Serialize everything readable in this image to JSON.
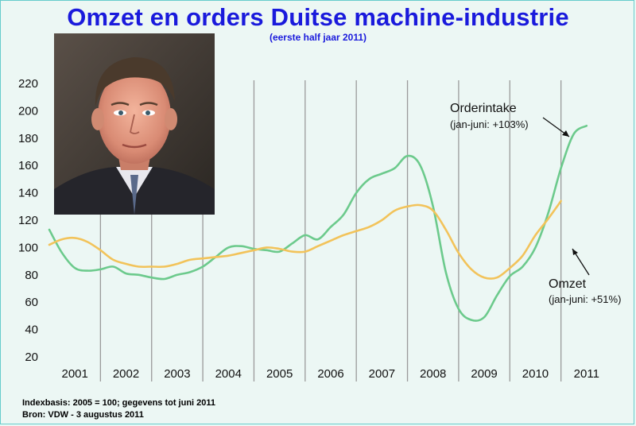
{
  "title": "Omzet en orders Duitse machine-industrie",
  "subtitle": "(eerste half jaar 2011)",
  "footer": {
    "line1": "Indexbasis: 2005 = 100; gegevens tot juni 2011",
    "line2": "Bron: VDW - 3 augustus 2011"
  },
  "annotations": {
    "orders_name": "Orderintake",
    "orders_note": "(jan-juni: +103%)",
    "omzet_name": "Omzet",
    "omzet_note": "(jan-juni: +51%)"
  },
  "colors": {
    "orders": "#6cca8c",
    "omzet": "#f2c35a",
    "grid": "#9a9a9a"
  },
  "photo_icon": "portrait-photo",
  "chart_data": {
    "type": "line",
    "title": "Omzet en orders Duitse machine-industrie",
    "subtitle": "(eerste half jaar 2011)",
    "ylim": [
      20,
      220
    ],
    "xlim": [
      2000.5,
      2011.5
    ],
    "yticks": [
      20,
      40,
      60,
      80,
      100,
      120,
      140,
      160,
      180,
      200,
      220
    ],
    "x_tick_labels": [
      {
        "x": 2001,
        "label": "2001"
      },
      {
        "x": 2002,
        "label": "2002"
      },
      {
        "x": 2003,
        "label": "2003"
      },
      {
        "x": 2004,
        "label": "2004"
      },
      {
        "x": 2005,
        "label": "2005"
      },
      {
        "x": 2006,
        "label": "2006"
      },
      {
        "x": 2007,
        "label": "2007"
      },
      {
        "x": 2008,
        "label": "2008"
      },
      {
        "x": 2009,
        "label": "2009"
      },
      {
        "x": 2010,
        "label": "2010"
      },
      {
        "x": 2011,
        "label": "2011"
      }
    ],
    "grid_x": [
      2001.5,
      2002.5,
      2003.5,
      2004.5,
      2005.5,
      2006.5,
      2007.5,
      2008.5,
      2009.5,
      2010.5
    ],
    "series": [
      {
        "name": "Orderintake",
        "points": [
          [
            2000.5,
            113
          ],
          [
            2000.75,
            96
          ],
          [
            2001.0,
            85
          ],
          [
            2001.25,
            83
          ],
          [
            2001.5,
            84
          ],
          [
            2001.75,
            86
          ],
          [
            2002.0,
            81
          ],
          [
            2002.25,
            80
          ],
          [
            2002.5,
            78
          ],
          [
            2002.75,
            77
          ],
          [
            2003.0,
            80
          ],
          [
            2003.25,
            82
          ],
          [
            2003.5,
            86
          ],
          [
            2003.75,
            93
          ],
          [
            2004.0,
            100
          ],
          [
            2004.25,
            101
          ],
          [
            2004.5,
            99
          ],
          [
            2004.75,
            98
          ],
          [
            2005.0,
            97
          ],
          [
            2005.25,
            103
          ],
          [
            2005.5,
            109
          ],
          [
            2005.75,
            106
          ],
          [
            2006.0,
            115
          ],
          [
            2006.25,
            124
          ],
          [
            2006.5,
            140
          ],
          [
            2006.75,
            150
          ],
          [
            2007.0,
            154
          ],
          [
            2007.25,
            158
          ],
          [
            2007.5,
            167
          ],
          [
            2007.75,
            160
          ],
          [
            2008.0,
            130
          ],
          [
            2008.25,
            82
          ],
          [
            2008.5,
            55
          ],
          [
            2008.75,
            47
          ],
          [
            2009.0,
            49
          ],
          [
            2009.25,
            65
          ],
          [
            2009.5,
            79
          ],
          [
            2009.75,
            86
          ],
          [
            2010.0,
            100
          ],
          [
            2010.25,
            125
          ],
          [
            2010.5,
            158
          ],
          [
            2010.75,
            183
          ],
          [
            2011.0,
            189
          ]
        ]
      },
      {
        "name": "Omzet",
        "points": [
          [
            2000.5,
            102
          ],
          [
            2000.75,
            106
          ],
          [
            2001.0,
            107
          ],
          [
            2001.25,
            104
          ],
          [
            2001.5,
            98
          ],
          [
            2001.75,
            91
          ],
          [
            2002.0,
            88
          ],
          [
            2002.25,
            86
          ],
          [
            2002.5,
            86
          ],
          [
            2002.75,
            86
          ],
          [
            2003.0,
            88
          ],
          [
            2003.25,
            91
          ],
          [
            2003.5,
            92
          ],
          [
            2003.75,
            93
          ],
          [
            2004.0,
            94
          ],
          [
            2004.25,
            96
          ],
          [
            2004.5,
            98
          ],
          [
            2004.75,
            100
          ],
          [
            2005.0,
            99
          ],
          [
            2005.25,
            97
          ],
          [
            2005.5,
            97
          ],
          [
            2005.75,
            101
          ],
          [
            2006.0,
            105
          ],
          [
            2006.25,
            109
          ],
          [
            2006.5,
            112
          ],
          [
            2006.75,
            115
          ],
          [
            2007.0,
            120
          ],
          [
            2007.25,
            127
          ],
          [
            2007.5,
            130
          ],
          [
            2007.75,
            131
          ],
          [
            2008.0,
            127
          ],
          [
            2008.25,
            113
          ],
          [
            2008.5,
            96
          ],
          [
            2008.75,
            84
          ],
          [
            2009.0,
            78
          ],
          [
            2009.25,
            78
          ],
          [
            2009.5,
            85
          ],
          [
            2009.75,
            94
          ],
          [
            2010.0,
            109
          ],
          [
            2010.25,
            121
          ],
          [
            2010.5,
            134
          ]
        ]
      }
    ]
  }
}
